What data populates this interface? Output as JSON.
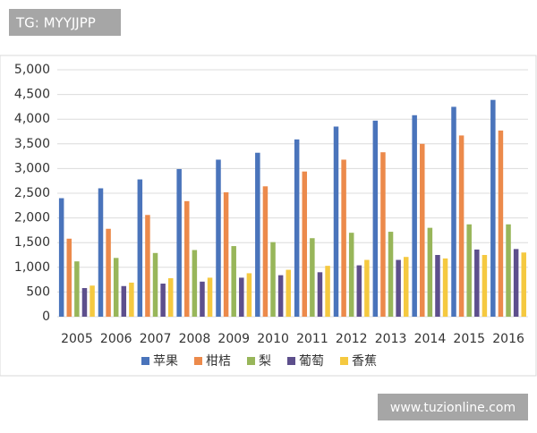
{
  "overlays": [
    "TG: MYYJJPP",
    "www.tuzionline.com"
  ],
  "chart_data": {
    "type": "bar",
    "categories": [
      "2005",
      "2006",
      "2007",
      "2008",
      "2009",
      "2010",
      "2011",
      "2012",
      "2013",
      "2014",
      "2015",
      "2016"
    ],
    "series": [
      {
        "name": "苹果",
        "color": "#4a74bb",
        "values": [
          2400,
          2600,
          2780,
          2990,
          3180,
          3320,
          3590,
          3850,
          3970,
          4080,
          4250,
          4390
        ]
      },
      {
        "name": "柑桔",
        "color": "#ec8a4b",
        "values": [
          1580,
          1780,
          2060,
          2340,
          2520,
          2640,
          2940,
          3180,
          3330,
          3500,
          3670,
          3770
        ]
      },
      {
        "name": "梨",
        "color": "#98b65a",
        "values": [
          1120,
          1190,
          1290,
          1350,
          1430,
          1510,
          1590,
          1700,
          1720,
          1800,
          1870,
          1870
        ]
      },
      {
        "name": "葡萄",
        "color": "#5d4f8c",
        "values": [
          580,
          620,
          670,
          710,
          790,
          840,
          900,
          1040,
          1150,
          1250,
          1360,
          1370
        ]
      },
      {
        "name": "香蕉",
        "color": "#f5c940",
        "values": [
          630,
          690,
          780,
          790,
          880,
          950,
          1030,
          1150,
          1210,
          1180,
          1250,
          1300
        ]
      }
    ],
    "ylim": [
      0,
      5000
    ],
    "yticks": [
      0,
      500,
      {
        "value": 1000,
        "label": "1,000"
      },
      {
        "value": 1500,
        "label": "1,500"
      },
      {
        "value": 2000,
        "label": "2,000"
      },
      {
        "value": 2500,
        "label": "2,500"
      },
      {
        "value": 3000,
        "label": "3,000"
      },
      {
        "value": 3500,
        "label": "3,500"
      },
      {
        "value": 4000,
        "label": "4,000"
      },
      {
        "value": 4500,
        "label": "4,500"
      },
      {
        "value": 5000,
        "label": "5,000"
      }
    ],
    "grid": true
  }
}
